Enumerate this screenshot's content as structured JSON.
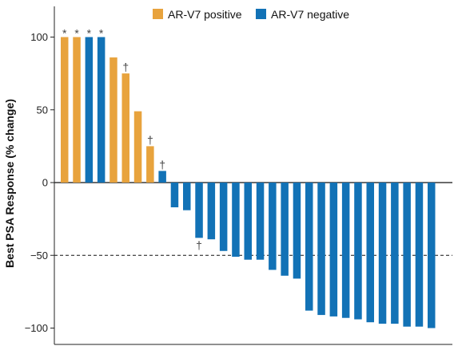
{
  "chart_data": {
    "type": "bar",
    "ylabel": "Best PSA Response (% change)",
    "ylim": [
      -112,
      112
    ],
    "yticks": [
      {
        "value": 100,
        "label": "100"
      },
      {
        "value": 50,
        "label": "50"
      },
      {
        "value": 0,
        "label": "0"
      },
      {
        "value": -50,
        "label": "−50"
      },
      {
        "value": -100,
        "label": "−100"
      }
    ],
    "reference_lines": [
      {
        "value": 0,
        "style": "solid"
      },
      {
        "value": -50,
        "style": "dashed"
      }
    ],
    "legend": {
      "placement": "top",
      "entries": [
        {
          "series": "positive",
          "label": "AR-V7 positive"
        },
        {
          "series": "negative",
          "label": "AR-V7 negative"
        }
      ]
    },
    "colors": {
      "positive": "#E8A33D",
      "negative": "#1272B6"
    },
    "series": [
      {
        "name": "AR-V7 positive",
        "key": "positive"
      },
      {
        "name": "AR-V7 negative",
        "key": "negative"
      }
    ],
    "bars": [
      {
        "value": 100,
        "series": "positive",
        "mark": "*"
      },
      {
        "value": 100,
        "series": "positive",
        "mark": "*"
      },
      {
        "value": 100,
        "series": "negative",
        "mark": "*"
      },
      {
        "value": 100,
        "series": "negative",
        "mark": "*"
      },
      {
        "value": 86,
        "series": "positive",
        "mark": ""
      },
      {
        "value": 75,
        "series": "positive",
        "mark": "†"
      },
      {
        "value": 49,
        "series": "positive",
        "mark": ""
      },
      {
        "value": 25,
        "series": "positive",
        "mark": "†"
      },
      {
        "value": 8,
        "series": "negative",
        "mark": "†"
      },
      {
        "value": -17,
        "series": "negative",
        "mark": ""
      },
      {
        "value": -19,
        "series": "negative",
        "mark": ""
      },
      {
        "value": -38,
        "series": "negative",
        "mark": "†"
      },
      {
        "value": -39,
        "series": "negative",
        "mark": ""
      },
      {
        "value": -47,
        "series": "negative",
        "mark": ""
      },
      {
        "value": -51,
        "series": "negative",
        "mark": ""
      },
      {
        "value": -53,
        "series": "negative",
        "mark": ""
      },
      {
        "value": -53,
        "series": "negative",
        "mark": ""
      },
      {
        "value": -60,
        "series": "negative",
        "mark": ""
      },
      {
        "value": -64,
        "series": "negative",
        "mark": ""
      },
      {
        "value": -66,
        "series": "negative",
        "mark": ""
      },
      {
        "value": -88,
        "series": "negative",
        "mark": ""
      },
      {
        "value": -91,
        "series": "negative",
        "mark": ""
      },
      {
        "value": -92,
        "series": "negative",
        "mark": ""
      },
      {
        "value": -93,
        "series": "negative",
        "mark": ""
      },
      {
        "value": -94,
        "series": "negative",
        "mark": ""
      },
      {
        "value": -96,
        "series": "negative",
        "mark": ""
      },
      {
        "value": -97,
        "series": "negative",
        "mark": ""
      },
      {
        "value": -97,
        "series": "negative",
        "mark": ""
      },
      {
        "value": -99,
        "series": "negative",
        "mark": ""
      },
      {
        "value": -99,
        "series": "negative",
        "mark": ""
      },
      {
        "value": -100,
        "series": "negative",
        "mark": ""
      }
    ]
  }
}
